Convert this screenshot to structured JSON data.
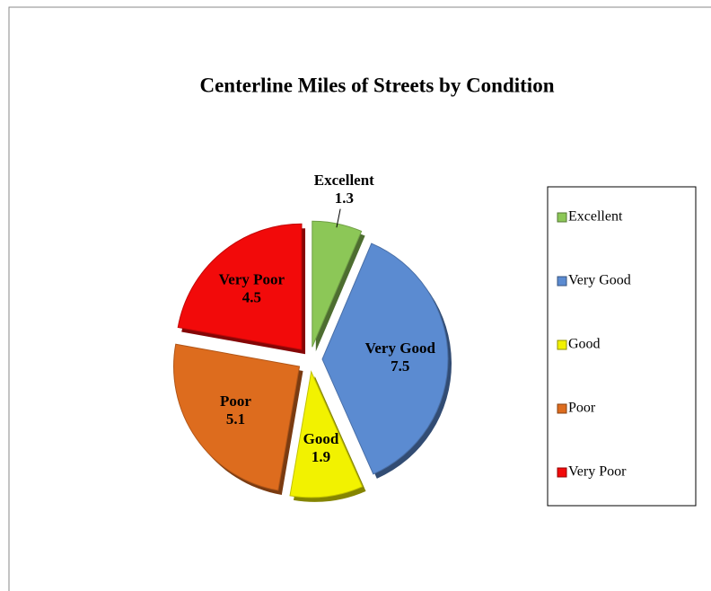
{
  "chart_data": {
    "type": "pie",
    "title": "Centerline Miles of Streets by Condition",
    "categories": [
      "Excellent",
      "Very Good",
      "Good",
      "Poor",
      "Very Poor"
    ],
    "values": [
      1.3,
      7.5,
      1.9,
      5.1,
      4.5
    ],
    "colors": [
      "#8cc757",
      "#5b8bd1",
      "#f2f200",
      "#dd6c1e",
      "#f20a0a"
    ],
    "legend": "right"
  }
}
